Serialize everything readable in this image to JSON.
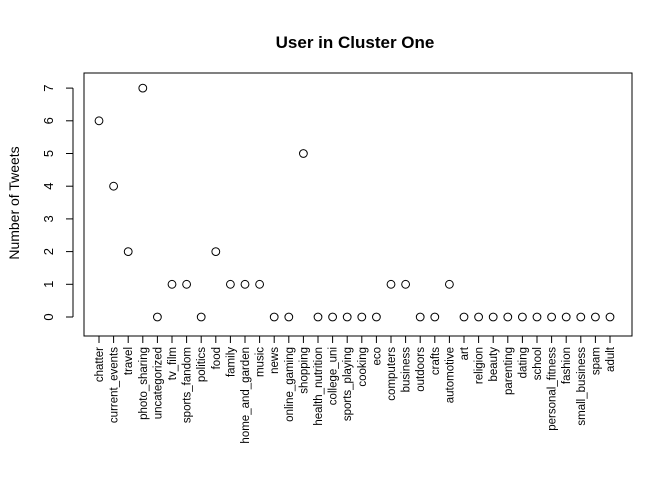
{
  "chart_data": {
    "type": "scatter",
    "title": "User in Cluster One",
    "xlabel": "",
    "ylabel": "Number of Tweets",
    "ylim": [
      0,
      7
    ],
    "yticks": [
      0,
      1,
      2,
      3,
      4,
      5,
      6,
      7
    ],
    "grid": false,
    "categories": [
      "chatter",
      "current_events",
      "travel",
      "photo_sharing",
      "uncategorized",
      "tv_film",
      "sports_fandom",
      "politics",
      "food",
      "family",
      "home_and_garden",
      "music",
      "news",
      "online_gaming",
      "shopping",
      "health_nutrition",
      "college_uni",
      "sports_playing",
      "cooking",
      "eco",
      "computers",
      "business",
      "outdoors",
      "crafts",
      "automotive",
      "art",
      "religion",
      "beauty",
      "parenting",
      "dating",
      "school",
      "personal_fitness",
      "fashion",
      "small_business",
      "spam",
      "adult"
    ],
    "values": [
      6,
      4,
      2,
      7,
      0,
      1,
      1,
      0,
      2,
      1,
      1,
      1,
      0,
      0,
      5,
      0,
      0,
      0,
      0,
      0,
      1,
      1,
      0,
      0,
      1,
      0,
      0,
      0,
      0,
      0,
      0,
      0,
      0,
      0,
      0,
      0
    ]
  }
}
